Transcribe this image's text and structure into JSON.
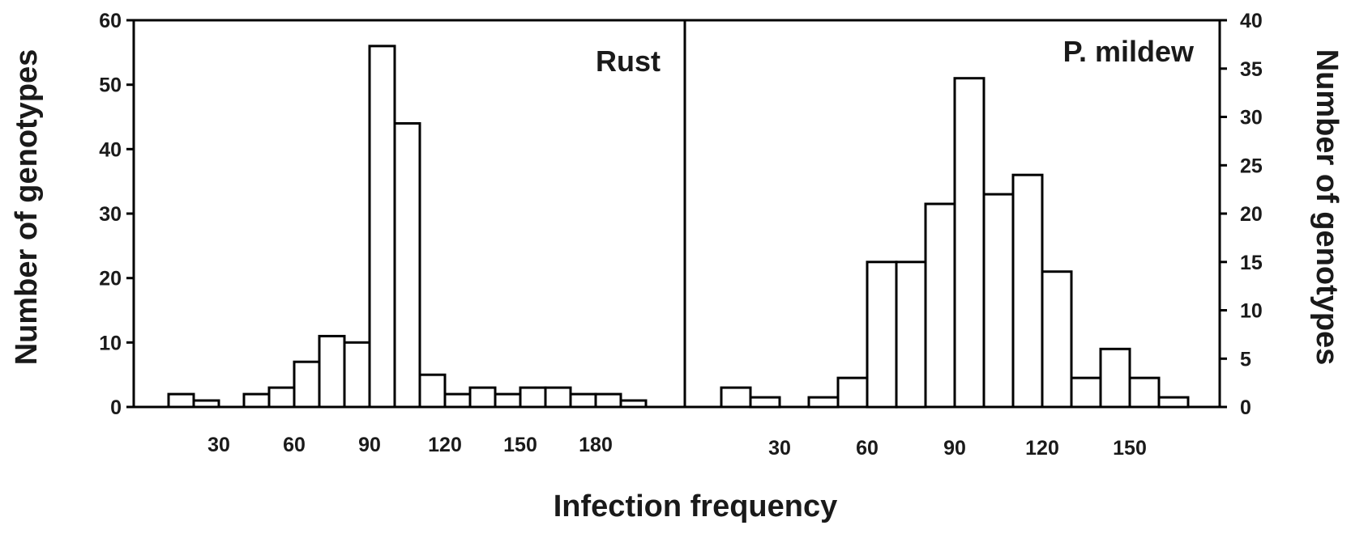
{
  "chart_data": [
    {
      "type": "bar",
      "label": "Rust",
      "xlabel": "Infection frequency",
      "ylabel": "Number of genotypes",
      "ylim": [
        0,
        60
      ],
      "yticks": [
        0,
        10,
        20,
        30,
        40,
        50,
        60
      ],
      "xticks": [
        30,
        60,
        90,
        120,
        150,
        180
      ],
      "bin_width": 10,
      "bins": [
        10,
        20,
        30,
        40,
        50,
        60,
        70,
        80,
        90,
        100,
        110,
        120,
        130,
        140,
        150,
        160,
        170,
        180,
        190
      ],
      "values": [
        2,
        1,
        0,
        2,
        3,
        7,
        11,
        10,
        56,
        44,
        5,
        2,
        3,
        2,
        3,
        3,
        2,
        2,
        1
      ]
    },
    {
      "type": "bar",
      "label": "P. mildew",
      "xlabel": "Infection frequency",
      "ylabel": "Number of genotypes",
      "ylim": [
        0,
        40
      ],
      "yticks": [
        0,
        5,
        10,
        15,
        20,
        25,
        30,
        35,
        40
      ],
      "xticks": [
        30,
        60,
        90,
        120,
        150
      ],
      "bin_width": 10,
      "bins": [
        10,
        20,
        30,
        40,
        50,
        60,
        70,
        80,
        90,
        100,
        110,
        120,
        130,
        140,
        150,
        160
      ],
      "values": [
        2,
        1,
        0,
        1,
        3,
        15,
        15,
        21,
        34,
        22,
        24,
        14,
        3,
        6,
        3,
        1
      ]
    }
  ],
  "text": {
    "rust_label": "Rust",
    "mildew_label": "P. mildew",
    "x_title": "Infection frequency",
    "left_y_title": "Number of genotypes",
    "right_y_title": "Number of genotypes"
  }
}
